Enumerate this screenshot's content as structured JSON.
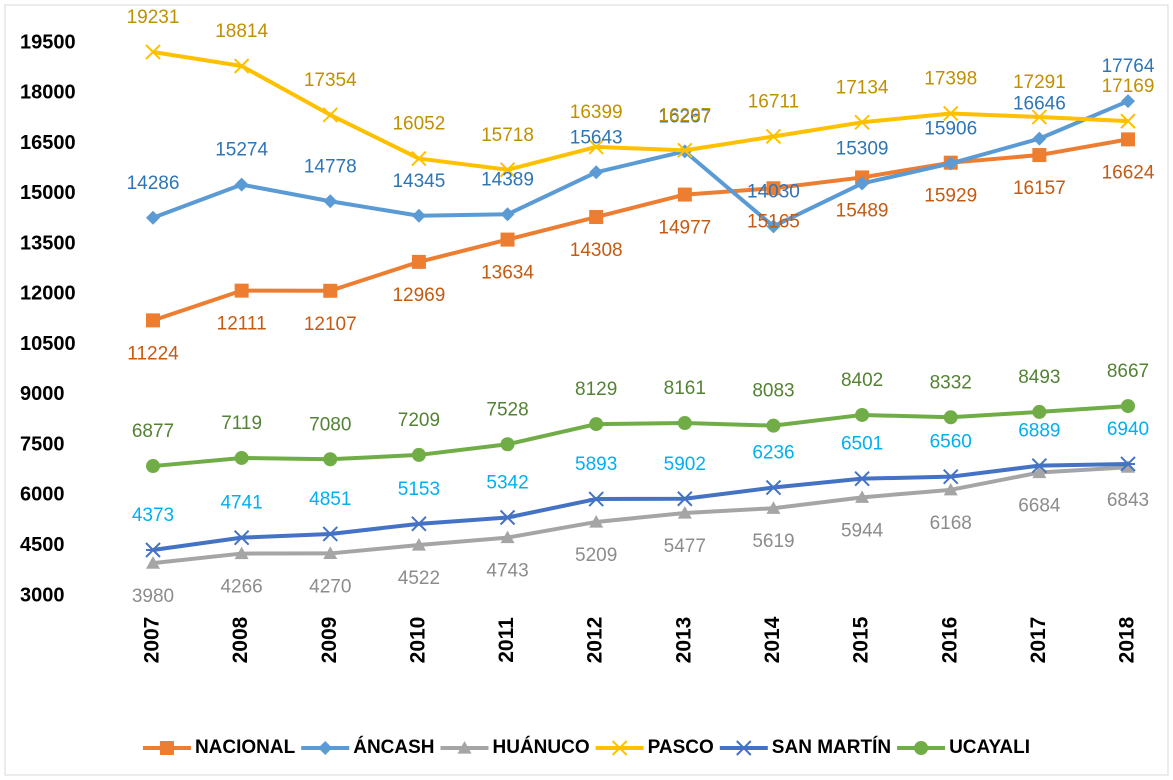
{
  "chart_data": {
    "type": "line",
    "categories": [
      "2007",
      "2008",
      "2009",
      "2010",
      "2011",
      "2012",
      "2013",
      "2014",
      "2015",
      "2016",
      "2017",
      "2018"
    ],
    "series": [
      {
        "name": "NACIONAL",
        "color": "#ed7d31",
        "marker": "square",
        "label_color": "#c55a11",
        "label_position": "below",
        "values": [
          11224,
          12111,
          12107,
          12969,
          13634,
          14308,
          14977,
          15165,
          15489,
          15929,
          16157,
          16624
        ]
      },
      {
        "name": "ÁNCASH",
        "color": "#5b9bd5",
        "marker": "diamond",
        "label_color": "#2e75b6",
        "label_position": "above",
        "values": [
          14286,
          15274,
          14778,
          14345,
          14389,
          15643,
          16267,
          14030,
          15309,
          15906,
          16646,
          17764
        ]
      },
      {
        "name": "HUÁNUCO",
        "color": "#a5a5a5",
        "marker": "triangle",
        "label_color": "#8c8c8c",
        "label_position": "below",
        "values": [
          3980,
          4266,
          4270,
          4522,
          4743,
          5209,
          5477,
          5619,
          5944,
          6168,
          6684,
          6843
        ]
      },
      {
        "name": "PASCO",
        "color": "#ffc000",
        "marker": "x",
        "label_color": "#bf9000",
        "label_position": "above",
        "values": [
          19231,
          18814,
          17354,
          16052,
          15718,
          16399,
          16297,
          16711,
          17134,
          17398,
          17291,
          17169
        ]
      },
      {
        "name": "SAN MARTÍN",
        "color": "#4472c4",
        "marker": "star",
        "label_color": "#00b0f0",
        "label_position": "above",
        "values": [
          4373,
          4741,
          4851,
          5153,
          5342,
          5893,
          5902,
          6236,
          6501,
          6560,
          6889,
          6940
        ]
      },
      {
        "name": "UCAYALI",
        "color": "#70ad47",
        "marker": "circle",
        "label_color": "#548235",
        "label_position": "above",
        "values": [
          6877,
          7119,
          7080,
          7209,
          7528,
          8129,
          8161,
          8083,
          8402,
          8332,
          8493,
          8667
        ]
      }
    ],
    "ylim": [
      3000,
      19500
    ],
    "yticks": [
      3000,
      4500,
      6000,
      7500,
      9000,
      10500,
      12000,
      13500,
      15000,
      16500,
      18000,
      19500
    ],
    "grid": false,
    "legend": "bottom"
  }
}
